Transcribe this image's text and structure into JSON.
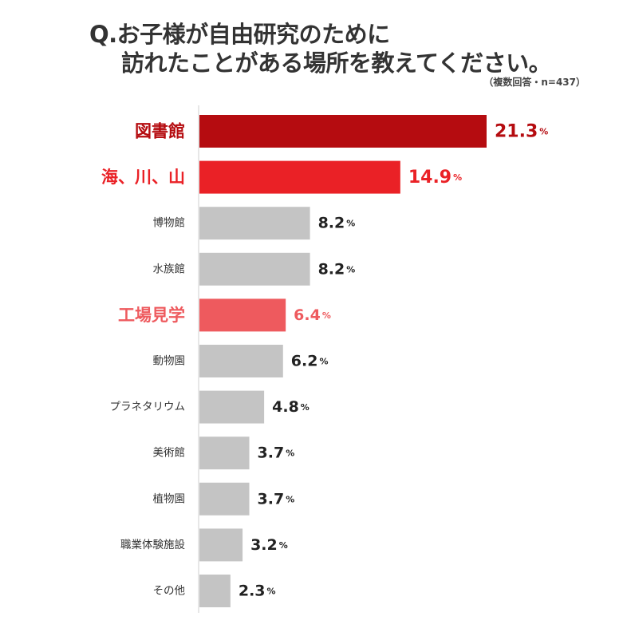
{
  "title": {
    "line1": "Q.お子様が自由研究のために",
    "line2": "訪れたことがある場所を教えてください。",
    "note": "（複数回答・n=437）"
  },
  "colors": {
    "dark_red": "#b50c10",
    "red": "#ea2126",
    "pink": "#ee5a5e",
    "gray": "#c4c4c4"
  },
  "chart_data": {
    "type": "bar",
    "orientation": "horizontal",
    "unit": "%",
    "categories": [
      "図書館",
      "海、川、山",
      "博物館",
      "水族館",
      "工場見学",
      "動物園",
      "プラネタリウム",
      "美術館",
      "植物園",
      "職業体験施設",
      "その他"
    ],
    "values": [
      21.3,
      14.9,
      8.2,
      8.2,
      6.4,
      6.2,
      4.8,
      3.7,
      3.7,
      3.2,
      2.3
    ],
    "value_labels": [
      "21.3",
      "14.9",
      "8.2",
      "8.2",
      "6.4",
      "6.2",
      "4.8",
      "3.7",
      "3.7",
      "3.2",
      "2.3"
    ],
    "highlight": [
      "dark_red",
      "red",
      "gray",
      "gray",
      "pink",
      "gray",
      "gray",
      "gray",
      "gray",
      "gray",
      "gray"
    ],
    "emphasized": [
      true,
      true,
      false,
      false,
      true,
      false,
      false,
      false,
      false,
      false,
      false
    ],
    "xlim": [
      0,
      21.3
    ],
    "grid": false,
    "legend": "none"
  }
}
